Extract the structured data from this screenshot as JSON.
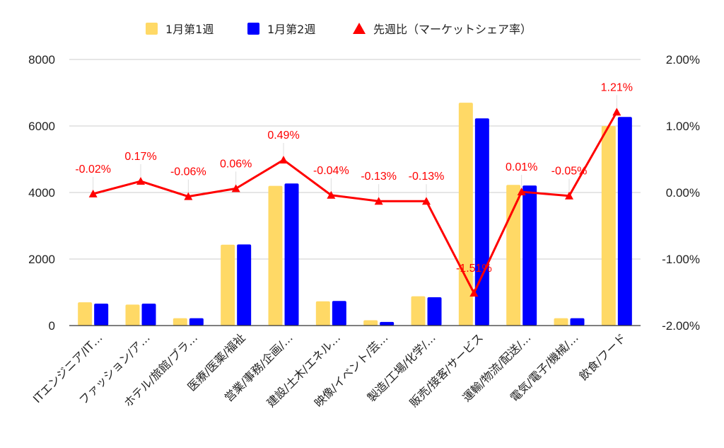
{
  "chart_data": {
    "type": "bar",
    "categories": [
      "ITエンジニア/IT…",
      "ファッション/ア…",
      "ホテル/旅館/ブラ…",
      "医療/医薬/福祉",
      "営業/事務/企画/…",
      "建設/土木/エネル…",
      "映像/イベント/芸…",
      "製造/工場/化学/…",
      "販売/接客/サービス",
      "運輸/物流/配送/…",
      "電気/電子/機械/…",
      "飲食/フード"
    ],
    "series": [
      {
        "name": "1月第1週",
        "type": "bar",
        "axis": "left",
        "color": "#ffd966",
        "values": [
          700,
          630,
          220,
          2430,
          4200,
          730,
          160,
          880,
          6700,
          4230,
          220,
          6000
        ]
      },
      {
        "name": "1月第2週",
        "type": "bar",
        "axis": "left",
        "color": "#0000ff",
        "values": [
          660,
          660,
          220,
          2440,
          4270,
          740,
          110,
          850,
          6230,
          4210,
          220,
          6270
        ]
      },
      {
        "name": "先週比（マーケットシェア率）",
        "type": "line",
        "axis": "right",
        "color": "#ff0000",
        "values": [
          -0.02,
          0.17,
          -0.06,
          0.06,
          0.49,
          -0.04,
          -0.13,
          -0.13,
          -1.51,
          0.01,
          -0.05,
          1.21
        ],
        "labels": [
          "-0.02%",
          "0.17%",
          "-0.06%",
          "0.06%",
          "0.49%",
          "-0.04%",
          "-0.13%",
          "-0.13%",
          "-1.51%",
          "0.01%",
          "-0.05%",
          "1.21%"
        ]
      }
    ],
    "y_left": {
      "min": 0,
      "max": 8000,
      "ticks": [
        0,
        2000,
        4000,
        6000,
        8000
      ]
    },
    "y_right": {
      "min": -2,
      "max": 2,
      "ticks": [
        "-2.00%",
        "-1.00%",
        "0.00%",
        "1.00%",
        "2.00%"
      ]
    },
    "grid": true,
    "legend": "top-center"
  }
}
